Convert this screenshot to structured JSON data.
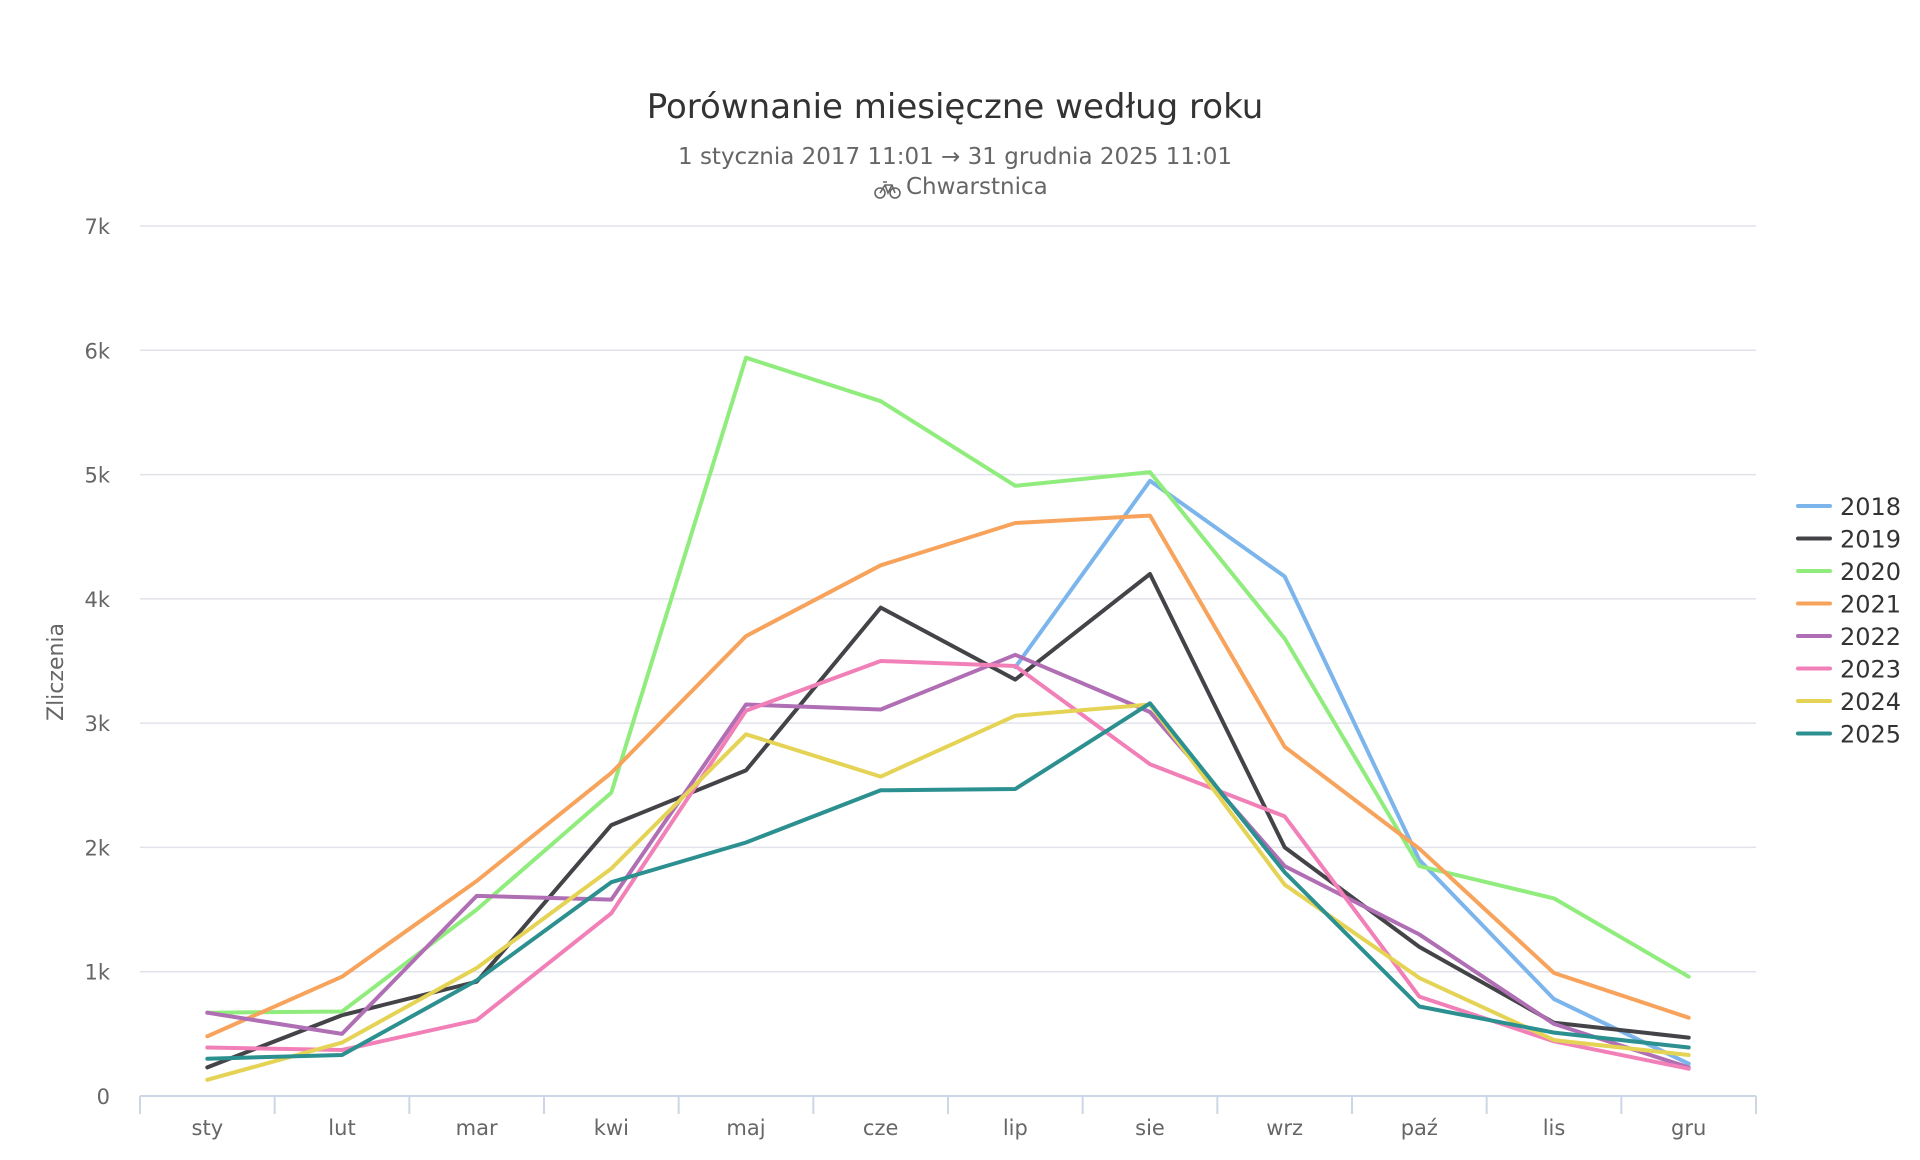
{
  "chart_data": {
    "type": "line",
    "title": "Porównanie miesięczne według roku",
    "subtitle": "1 stycznia 2017 11:01 → 31 grudnia 2025 11:01",
    "location": "Chwarstnica",
    "location_icon": "bicycle-icon",
    "xlabel": "",
    "ylabel": "Zliczenia",
    "ylim": [
      0,
      7000
    ],
    "y_ticks": [
      "0",
      "1k",
      "2k",
      "3k",
      "4k",
      "5k",
      "6k",
      "7k"
    ],
    "categories": [
      "sty",
      "lut",
      "mar",
      "kwi",
      "maj",
      "cze",
      "lip",
      "sie",
      "wrz",
      "paź",
      "lis",
      "gru"
    ],
    "grid": true,
    "legend_position": "right",
    "series": [
      {
        "name": "2018",
        "color": "#7cb5ec",
        "values": [
          null,
          null,
          null,
          null,
          null,
          null,
          3450,
          4950,
          4180,
          1900,
          780,
          260
        ]
      },
      {
        "name": "2019",
        "color": "#434348",
        "values": [
          230,
          650,
          920,
          2180,
          2620,
          3930,
          3350,
          4200,
          2000,
          1200,
          590,
          470
        ]
      },
      {
        "name": "2020",
        "color": "#90ed7d",
        "values": [
          670,
          680,
          1500,
          2440,
          5940,
          5590,
          4910,
          5020,
          3680,
          1850,
          1590,
          960
        ]
      },
      {
        "name": "2021",
        "color": "#f7a35c",
        "values": [
          480,
          960,
          1730,
          2600,
          3700,
          4270,
          4610,
          4670,
          2810,
          1990,
          990,
          630
        ]
      },
      {
        "name": "2022",
        "color": "#b06fb4",
        "values": [
          670,
          500,
          1610,
          1580,
          3150,
          3110,
          3550,
          3090,
          1850,
          1300,
          580,
          230
        ]
      },
      {
        "name": "2023",
        "color": "#f280b8",
        "values": [
          390,
          370,
          610,
          1470,
          3100,
          3500,
          3460,
          2670,
          2250,
          800,
          440,
          220
        ]
      },
      {
        "name": "2024",
        "color": "#e4d354",
        "values": [
          130,
          430,
          1030,
          1830,
          2910,
          2570,
          3060,
          3150,
          1700,
          950,
          450,
          330
        ]
      },
      {
        "name": "2025",
        "color": "#2b908f",
        "values": [
          300,
          330,
          930,
          1720,
          2040,
          2460,
          2470,
          3160,
          1800,
          720,
          510,
          390
        ]
      }
    ]
  }
}
